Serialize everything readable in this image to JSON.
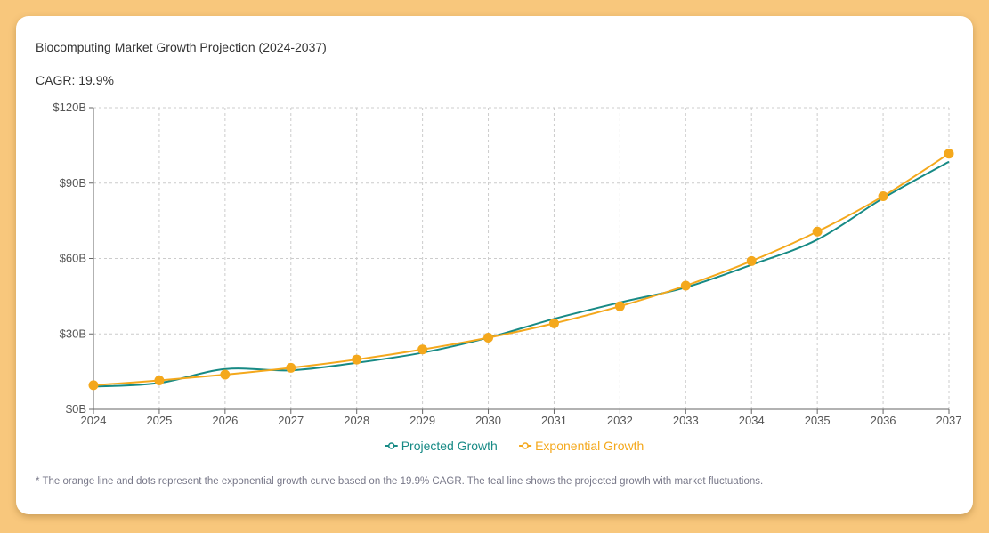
{
  "header": {
    "title": "Biocomputing Market Growth Projection (2024-2037)",
    "cagr": "CAGR: 19.9%"
  },
  "footnote": "* The orange line and dots represent the exponential growth curve based on the 19.9% CAGR. The teal line shows the projected growth with market fluctuations.",
  "colors": {
    "projected": "#178a85",
    "exponential": "#f4a81c",
    "grid": "#cccccc",
    "axis": "#666666",
    "background": "#f8c77c"
  },
  "chart_data": {
    "type": "line",
    "title": "Biocomputing Market Growth Projection (2024-2037)",
    "subtitle": "CAGR: 19.9%",
    "x": [
      2024,
      2025,
      2026,
      2027,
      2028,
      2029,
      2030,
      2031,
      2032,
      2033,
      2034,
      2035,
      2036,
      2037
    ],
    "y_ticks": [
      "$0B",
      "$30B",
      "$60B",
      "$90B",
      "$120B"
    ],
    "ylim": [
      0,
      120
    ],
    "grid": true,
    "legend_position": "bottom",
    "series": [
      {
        "name": "Projected Growth",
        "color": "#178a85",
        "markers": false,
        "values": [
          9,
          10.5,
          16,
          15.5,
          18.5,
          22.5,
          28.5,
          36,
          42.5,
          48.5,
          57.5,
          67.5,
          84,
          98.5
        ]
      },
      {
        "name": "Exponential Growth",
        "color": "#f4a81c",
        "markers": true,
        "values": [
          9.6,
          11.5,
          13.8,
          16.5,
          19.8,
          23.8,
          28.5,
          34.2,
          41.0,
          49.2,
          59.0,
          70.7,
          84.8,
          101.7
        ]
      }
    ]
  }
}
